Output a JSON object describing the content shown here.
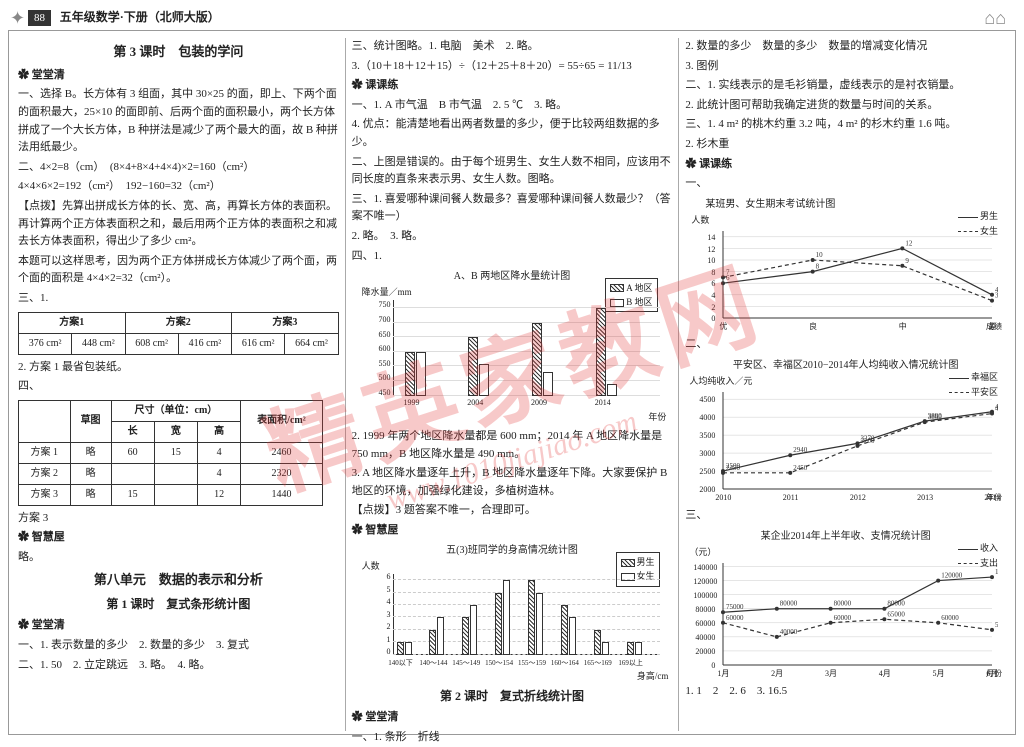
{
  "header": {
    "page_number": "88",
    "title": "五年级数学·下册（北师大版）"
  },
  "watermark": {
    "text": "精英家教网",
    "url": "www.1010jiajiao.com"
  },
  "col1": {
    "section_title": "第 3 课时　包装的学问",
    "paw1": "堂堂清",
    "p1": "一、选择 B。长方体有 3 组面，其中 30×25 的面，即上、下两个面的面积最大，25×10 的面即前、后两个面的面积最小，两个长方体拼成了一个大长方体，B 种拼法是减少了两个最大的面，故 B 种拼法用纸最少。",
    "p2": "二、4×2=8（cm）　(8×4+8×4+4×4)×2=160（cm²）",
    "p3": "4×4×6×2=192（cm²）　192−160=32（cm²）",
    "p4": "【点拨】先算出拼成长方体的长、宽、高，再算长方体的表面积。再计算两个正方体表面积之和，最后用两个正方体的表面积之和减去长方体表面积，得出少了多少 cm²。",
    "p5": "本题可以这样思考，因为两个正方体拼成长方体减少了两个面，两个面的面积是 4×4×2=32（cm²）。",
    "p6": "三、1.",
    "scheme_table": {
      "headers": [
        "方案1",
        "方案2",
        "方案3"
      ],
      "rows": [
        [
          "376 cm²",
          "448 cm²",
          "608 cm²",
          "416 cm²",
          "616 cm²",
          "664 cm²"
        ]
      ]
    },
    "p7": "2. 方案 1 最省包装纸。",
    "p8": "四、",
    "dim_table": {
      "head_row1": [
        "",
        "草图",
        "尺寸（单位：cm）",
        "表面积/cm²"
      ],
      "head_row2": [
        "长",
        "宽",
        "高"
      ],
      "rows": [
        [
          "方案 1",
          "略",
          "60",
          "15",
          "4",
          "2460"
        ],
        [
          "方案 2",
          "略",
          "",
          "",
          "4",
          "2320"
        ],
        [
          "方案 3",
          "略",
          "15",
          "",
          "12",
          "1440"
        ]
      ]
    },
    "p9": "方案 3",
    "paw2": "智慧屋",
    "p10": "略。",
    "unit_title": "第八单元　数据的表示和分析",
    "lesson1_title": "第 1 课时　复式条形统计图",
    "paw3": "堂堂清",
    "p11": "一、1. 表示数量的多少　2. 数量的多少　3. 复式",
    "p12": "二、1. 50　2. 立定跳远　3. 略。　4. 略。"
  },
  "col2": {
    "p1": "三、统计图略。1. 电脑　美术　2. 略。",
    "p2": "3.（10＋18＋12＋15）÷（12＋25＋8＋20）= 55÷65 = 11/13",
    "paw1": "课课练",
    "p3": "一、1. A 市气温　B 市气温　2. 5 ℃　3. 略。",
    "p4": "4. 优点：能清楚地看出两者数量的多少，便于比较两组数据的多少。",
    "p5": "二、上图是错误的。由于每个班男生、女生人数不相同，应该用不同长度的直条来表示男、女生人数。图略。",
    "p6": "三、1. 喜爱哪种课间餐人数最多？喜爱哪种课间餐人数最少？（答案不唯一）",
    "p7": "2. 略。　3. 略。",
    "p8": "四、1.",
    "bar_chart": {
      "title": "A、B 两地区降水量统计图",
      "ylabel": "降水量／mm",
      "xlabel": "年份",
      "legend": [
        "A 地区",
        "B 地区"
      ],
      "categories": [
        "1999",
        "2004",
        "2009",
        "2014"
      ],
      "series_a": [
        600,
        650,
        700,
        750
      ],
      "series_b": [
        600,
        560,
        530,
        490
      ],
      "yticks": [
        450,
        500,
        550,
        600,
        650,
        700,
        750
      ],
      "ylim": [
        450,
        780
      ],
      "colors": {
        "a_fill": "hatch",
        "b_fill": "#ffffff",
        "axis": "#333"
      }
    },
    "p9": "2. 1999 年两个地区降水量都是 600 mm；2014 年 A 地区降水量是 750 mm，B 地区降水量是 490 mm。",
    "p10": "3. A 地区降水量逐年上升，B 地区降水量逐年下降。大家要保护 B 地区的环境，加强绿化建设，多植树造林。",
    "p11": "【点拨】3 题答案不唯一，合理即可。",
    "paw2": "智慧屋",
    "hist_chart": {
      "title": "五(3)班同学的身高情况统计图",
      "legend": [
        "男生",
        "女生"
      ],
      "xticks": [
        "140以下",
        "140～144",
        "145～149",
        "150～154",
        "155～159",
        "160～164",
        "165～169",
        "169以上"
      ],
      "xlabel": "身高/cm",
      "ylabel": "人数",
      "yticks": [
        0,
        1,
        2,
        3,
        4,
        5,
        6
      ],
      "ylim": [
        0,
        6.5
      ],
      "series_m": [
        1,
        2,
        3,
        5,
        6,
        4,
        2,
        1
      ],
      "series_f": [
        1,
        3,
        4,
        6,
        5,
        3,
        1,
        1
      ]
    },
    "lesson2_title": "第 2 课时　复式折线统计图",
    "paw3": "堂堂清",
    "p12": "一、1. 条形　折线"
  },
  "col3": {
    "p1": "2. 数量的多少　数量的多少　数量的增减变化情况",
    "p2": "3. 图例",
    "p3": "二、1. 实线表示的是毛衫销量，虚线表示的是衬衣销量。",
    "p4": "2. 此统计图可帮助我确定进货的数量与时间的关系。",
    "p5": "三、1. 4 m² 的桃木约重 3.2 吨，4 m² 的杉木约重 1.6 吨。",
    "p6": "2. 杉木重",
    "paw1": "课课练",
    "line1": {
      "title": "某班男、女生期末考试统计图",
      "legend": [
        "男生",
        "女生"
      ],
      "xticks": [
        "优",
        "良",
        "中",
        "差"
      ],
      "xlabel": "成绩",
      "ylabel": "人数",
      "yticks": [
        0,
        2,
        4,
        6,
        8,
        10,
        12,
        14
      ],
      "ylim": [
        0,
        15
      ],
      "series_male": [
        6,
        8,
        12,
        4
      ],
      "series_female": [
        7,
        10,
        9,
        3
      ],
      "male_style": "solid",
      "female_style": "dashed",
      "point_labels_m": [
        "6",
        "8",
        "12",
        "4"
      ],
      "point_labels_f": [
        "7",
        "10",
        "9",
        "3"
      ]
    },
    "p7": "二、",
    "line2": {
      "title": "平安区、幸福区2010−2014年人均纯收入情况统计图",
      "legend": [
        "幸福区",
        "平安区"
      ],
      "xticks": [
        "2010",
        "2011",
        "2012",
        "2013",
        "2014"
      ],
      "xlabel": "年份",
      "ylabel": "人均纯收入／元",
      "yticks": [
        2000,
        2500,
        3000,
        3500,
        4000,
        4500
      ],
      "ylim": [
        2000,
        4700
      ],
      "series_xf": [
        2500,
        2940,
        3270,
        3890,
        4150
      ],
      "series_pa": [
        2450,
        2450,
        3200,
        3860,
        4100
      ],
      "point_labels_xf": [
        "2500",
        "2940",
        "3270",
        "3890",
        "4150"
      ],
      "point_labels_pa": [
        "2450",
        "2450",
        "3200",
        "3860",
        "4100"
      ],
      "xf_style": "solid",
      "pa_style": "dashed"
    },
    "p8": "三、",
    "line3": {
      "title": "某企业2014年上半年收、支情况统计图",
      "legend": [
        "收入",
        "支出"
      ],
      "xticks": [
        "1月",
        "2月",
        "3月",
        "4月",
        "5月",
        "6月"
      ],
      "xlabel": "月份",
      "ylabel": "（元）",
      "yticks": [
        0,
        20000,
        40000,
        60000,
        80000,
        100000,
        120000,
        140000
      ],
      "ylim": [
        0,
        145000
      ],
      "series_in": [
        75000,
        80000,
        80000,
        80000,
        120000,
        125000
      ],
      "series_out": [
        60000,
        40000,
        60000,
        65000,
        60000,
        50000
      ],
      "point_labels_in": [
        "75000",
        "80000",
        "80000",
        "80000",
        "120000",
        "125000"
      ],
      "point_labels_out": [
        "60000",
        "40000",
        "60000",
        "65000",
        "60000",
        "50000"
      ],
      "in_style": "solid",
      "out_style": "dashed"
    },
    "p9": "1. 1　2　2. 6　3. 16.5",
    "t_one": "一、"
  }
}
